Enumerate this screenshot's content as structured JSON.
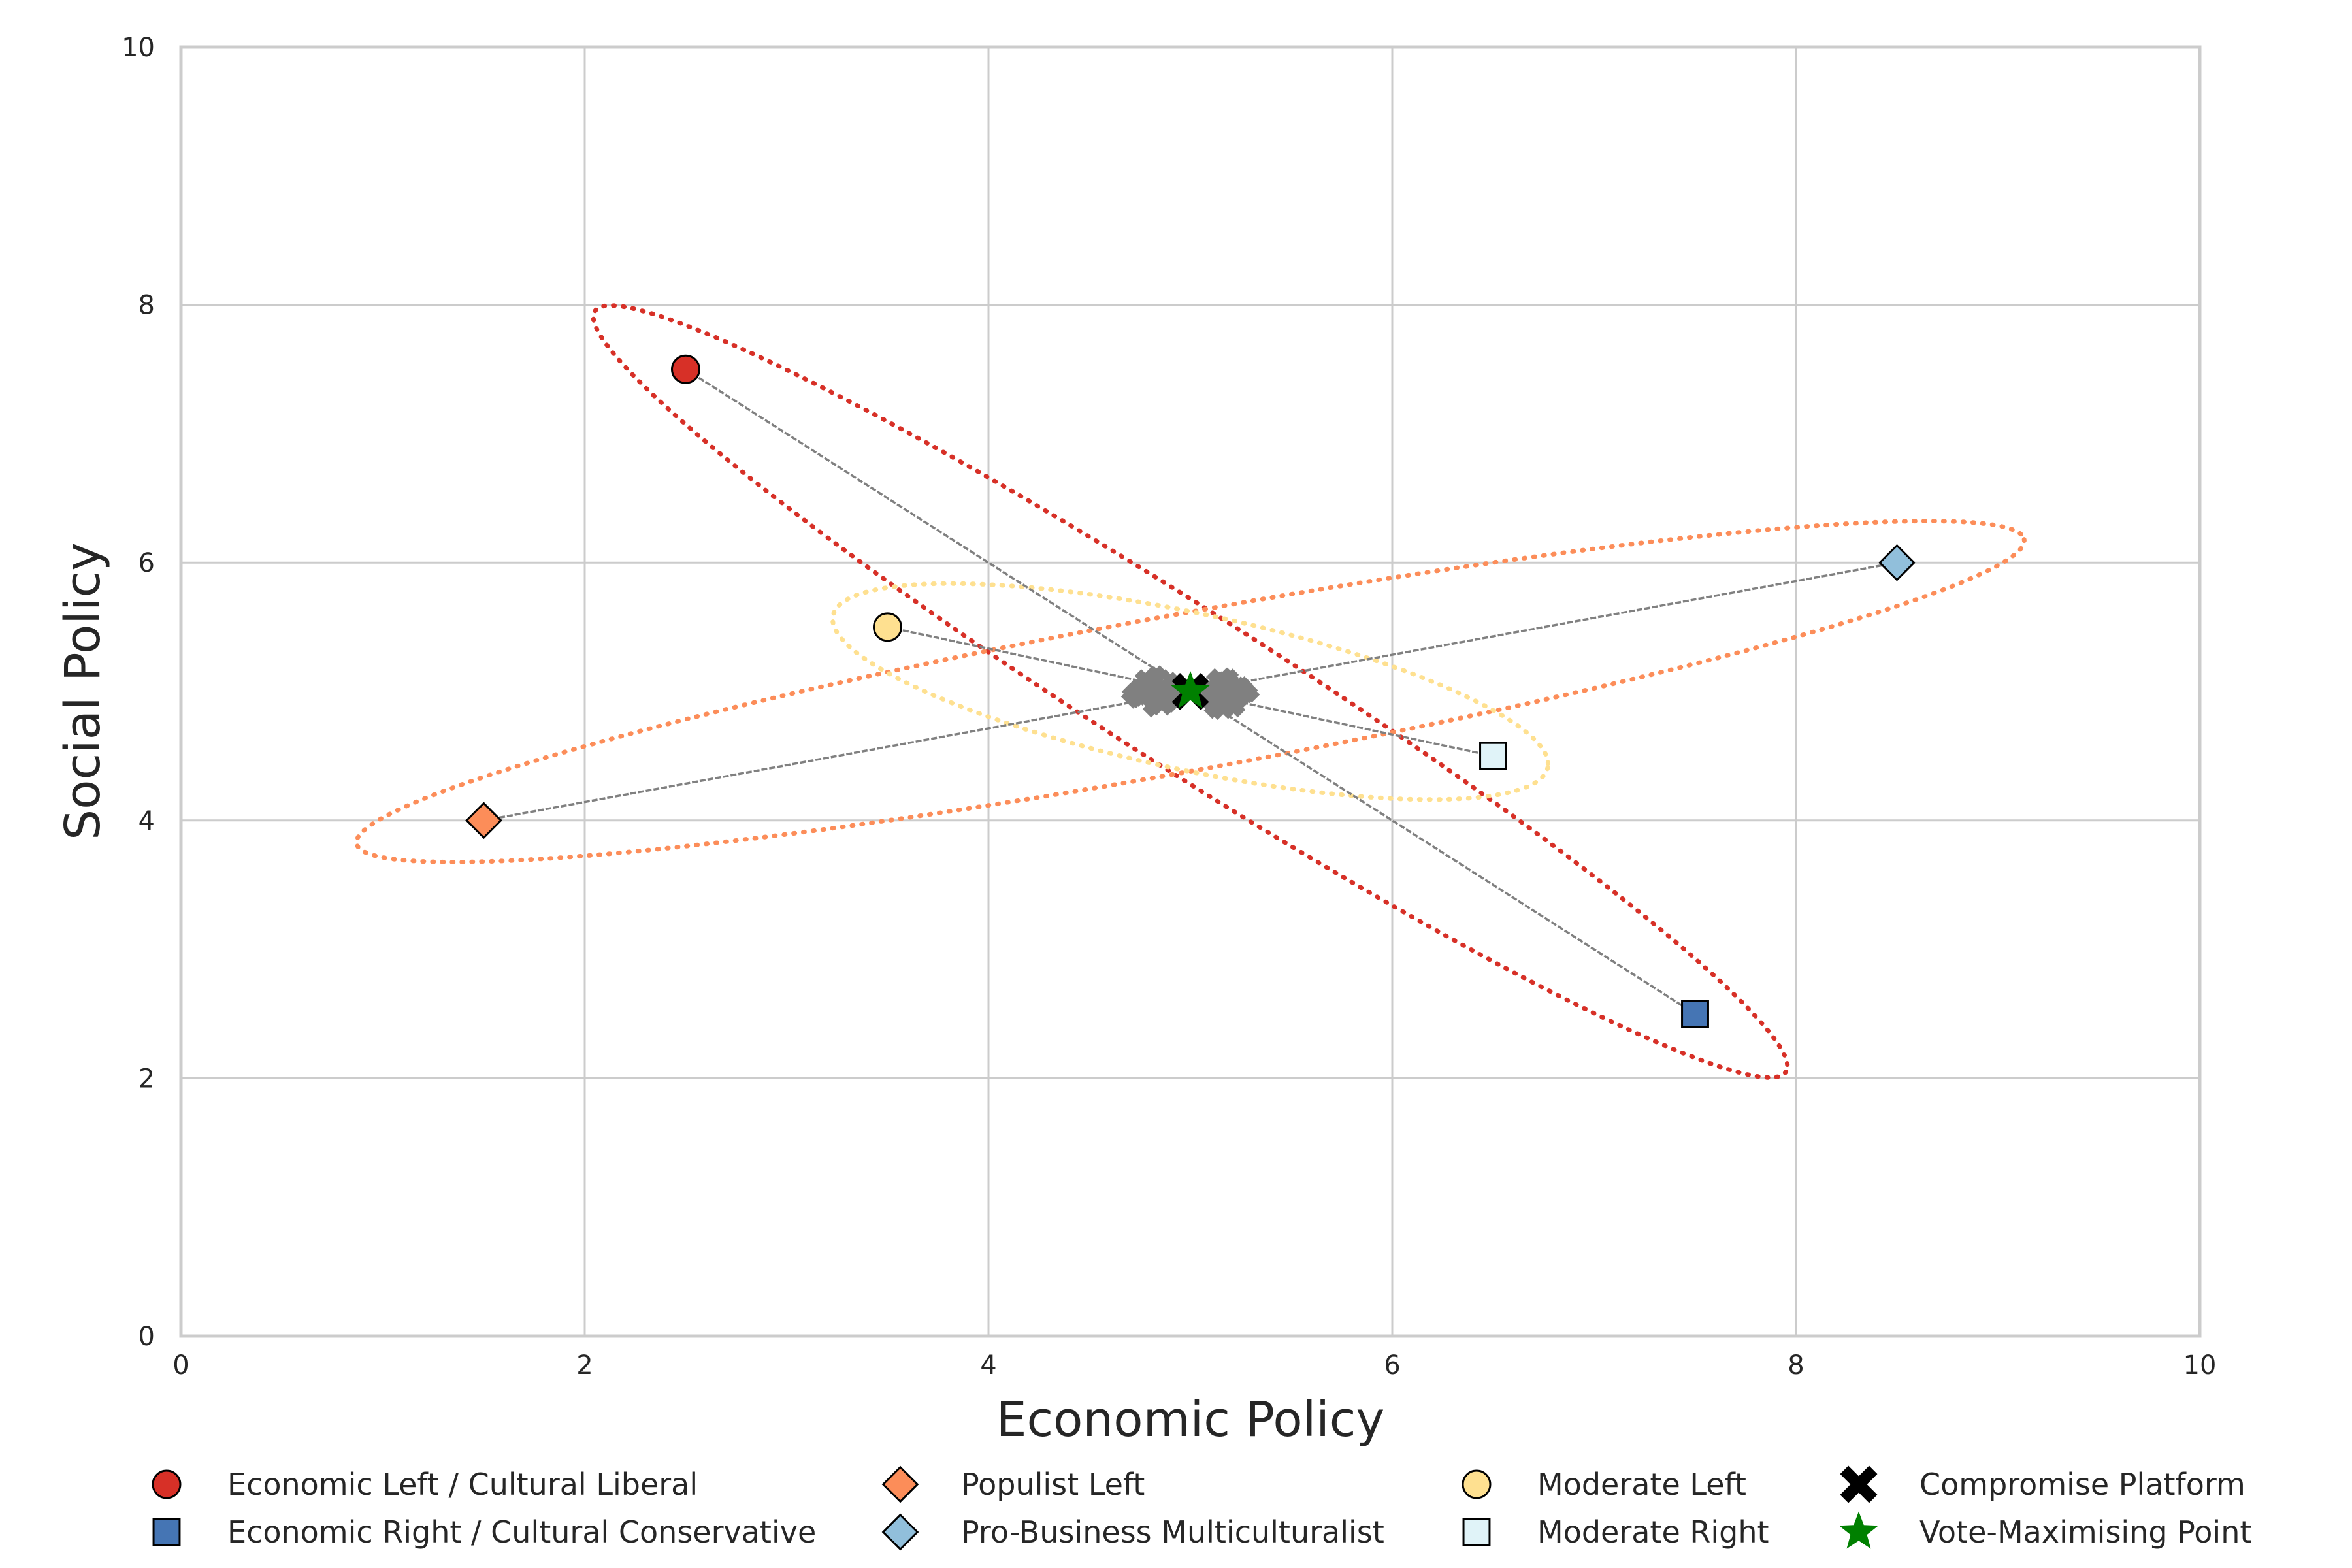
{
  "chart_data": {
    "type": "scatter",
    "title": "",
    "xlabel": "Economic Policy",
    "ylabel": "Social Policy",
    "xlim": [
      0,
      10
    ],
    "ylim": [
      0,
      10
    ],
    "xticks": [
      0,
      2,
      4,
      6,
      8,
      10
    ],
    "yticks": [
      0,
      2,
      4,
      6,
      8,
      10
    ],
    "grid": true,
    "legend_position": "bottom",
    "series": [
      {
        "name": "Economic Left / Cultural Liberal",
        "x": 2.5,
        "y": 7.5,
        "marker": "circle",
        "color": "#d73027"
      },
      {
        "name": "Economic Right / Cultural Conservative",
        "x": 7.5,
        "y": 2.5,
        "marker": "square",
        "color": "#4575b4"
      },
      {
        "name": "Populist Left",
        "x": 1.5,
        "y": 4.0,
        "marker": "diamond",
        "color": "#fc8d59"
      },
      {
        "name": "Pro-Business Multiculturalist",
        "x": 8.5,
        "y": 6.0,
        "marker": "diamond",
        "color": "#91bfdb"
      },
      {
        "name": "Moderate Left",
        "x": 3.5,
        "y": 5.5,
        "marker": "circle",
        "color": "#fee090"
      },
      {
        "name": "Moderate Right",
        "x": 6.5,
        "y": 4.5,
        "marker": "square",
        "color": "#e0f3f8"
      },
      {
        "name": "Compromise Platform",
        "x": 5.0,
        "y": 5.0,
        "marker": "x",
        "color": "#000000"
      },
      {
        "name": "Vote-Maximising Point",
        "x": 5.0,
        "y": 5.0,
        "marker": "star",
        "color": "#008000"
      }
    ],
    "pairs": [
      {
        "a": 0,
        "b": 1,
        "ellipse_color": "#d73027"
      },
      {
        "a": 2,
        "b": 3,
        "ellipse_color": "#fc8d59"
      },
      {
        "a": 4,
        "b": 5,
        "ellipse_color": "#fee090"
      }
    ],
    "connector_color": "#808080",
    "cluster_color": "#808080",
    "clusters": [
      {
        "x": 4.82,
        "y": 5.0
      },
      {
        "x": 5.18,
        "y": 4.98
      }
    ]
  }
}
